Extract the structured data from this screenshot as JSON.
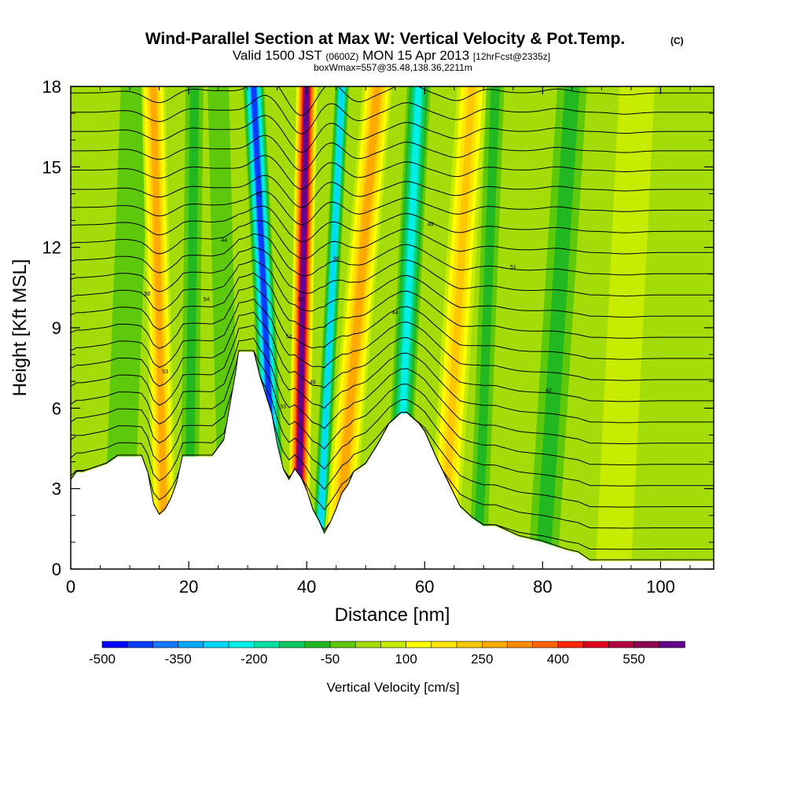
{
  "header": {
    "title": "Wind-Parallel Section at Max W: Vertical Velocity & Pot.Temp.",
    "copyright": "(C)",
    "valid_prefix": "Valid 1500 JST",
    "valid_zulu": "(0600Z)",
    "valid_date": "MON 15 Apr 2013",
    "forecast": "[12hrFcst@2335z]",
    "box_info": "boxWmax=557@35.48,138.36,2211m"
  },
  "chart_data": {
    "type": "heatmap",
    "title": "Wind-Parallel Section at Max W: Vertical Velocity & Pot.Temp.",
    "xlabel": "Distance [nm]",
    "ylabel": "Height [Kft MSL]",
    "xlim": [
      0,
      109
    ],
    "ylim": [
      0,
      18
    ],
    "xticks": [
      "0",
      "20",
      "40",
      "60",
      "80",
      "100"
    ],
    "xtick_values": [
      0,
      20,
      40,
      60,
      80,
      100
    ],
    "yticks": [
      "0",
      "3",
      "6",
      "9",
      "12",
      "15",
      "18"
    ],
    "ytick_values": [
      0,
      3,
      6,
      9,
      12,
      15,
      18
    ],
    "terrain": {
      "x": [
        0,
        1,
        2,
        6,
        8,
        12,
        13,
        14,
        15,
        16,
        17,
        18,
        19,
        20,
        24,
        26,
        28,
        28.5,
        31,
        32,
        34,
        35,
        36,
        37,
        38,
        39,
        40,
        41,
        42,
        43,
        44,
        45,
        46,
        47,
        48,
        50,
        52,
        54,
        56,
        57,
        59,
        60,
        62,
        64,
        66,
        68,
        70,
        72,
        76,
        80,
        84,
        86,
        88,
        90,
        95,
        100,
        105,
        109
      ],
      "y": [
        3.3,
        3.6,
        3.6,
        3.9,
        4.2,
        4.2,
        3.6,
        2.4,
        2.0,
        2.2,
        2.6,
        3.2,
        4.2,
        4.2,
        4.2,
        4.8,
        7.3,
        8.1,
        8.1,
        7.2,
        5.8,
        4.6,
        3.7,
        3.3,
        3.7,
        3.4,
        2.9,
        2.2,
        1.8,
        1.3,
        1.7,
        2.2,
        2.8,
        3.1,
        3.6,
        3.9,
        4.6,
        5.4,
        5.8,
        5.8,
        5.4,
        5.1,
        4.1,
        3.2,
        2.3,
        1.9,
        1.6,
        1.6,
        1.2,
        1.0,
        0.7,
        0.6,
        0.3,
        0.3,
        0.3,
        0.3,
        0.3,
        0.3
      ]
    },
    "vertical_velocity_bands": [
      {
        "x_bottom": 8,
        "x_top": 11,
        "half_width": 2.5,
        "value": -50
      },
      {
        "x_bottom": 16,
        "x_top": 14,
        "half_width": 2.0,
        "value": 250
      },
      {
        "x_bottom": 20,
        "x_top": 21,
        "half_width": 1.5,
        "value": -100
      },
      {
        "x_bottom": 27,
        "x_top": 25,
        "half_width": 1.8,
        "value": -50
      },
      {
        "x_bottom": 35,
        "x_top": 31,
        "half_width": 1.8,
        "value": -450
      },
      {
        "x_bottom": 38.5,
        "x_top": 40,
        "half_width": 1.8,
        "value": 600
      },
      {
        "x_bottom": 42,
        "x_top": 46,
        "half_width": 1.2,
        "value": -300
      },
      {
        "x_bottom": 45,
        "x_top": 52,
        "half_width": 2.5,
        "value": 250
      },
      {
        "x_bottom": 55,
        "x_top": 59,
        "half_width": 2.0,
        "value": -250
      },
      {
        "x_bottom": 63,
        "x_top": 68,
        "half_width": 2.5,
        "value": 200
      },
      {
        "x_bottom": 69,
        "x_top": 72,
        "half_width": 1.5,
        "value": -100
      },
      {
        "x_bottom": 80,
        "x_top": 85,
        "half_width": 2.5,
        "value": -100
      },
      {
        "x_bottom": 92,
        "x_top": 96,
        "half_width": 3.0,
        "value": 50
      }
    ],
    "isentropes": {
      "count": 24,
      "labels": [
        "50",
        "53",
        "54",
        "44",
        "52",
        "53",
        "54",
        "52",
        "49",
        "30",
        "44",
        "49",
        "51",
        "42"
      ]
    },
    "colorbar": {
      "label": "Vertical Velocity [cm/s]",
      "tick_labels": [
        "-500",
        "-350",
        "-200",
        "-50",
        "100",
        "250",
        "400",
        "550"
      ],
      "tick_values": [
        -500,
        -350,
        -200,
        -50,
        100,
        250,
        400,
        550
      ],
      "levels": [
        -500,
        -450,
        -400,
        -350,
        -300,
        -250,
        -200,
        -150,
        -100,
        -50,
        0,
        50,
        100,
        150,
        200,
        250,
        300,
        350,
        400,
        450,
        500,
        550,
        600
      ],
      "colors": [
        "#0000ff",
        "#0a3cff",
        "#1478ff",
        "#00aaff",
        "#00d8ff",
        "#00f0e8",
        "#00e0a0",
        "#10c860",
        "#22b822",
        "#5ec80a",
        "#a4dc0a",
        "#c8ec00",
        "#ffff00",
        "#ffe400",
        "#ffc800",
        "#ffaa00",
        "#ff8c00",
        "#ff6400",
        "#ff2800",
        "#e0001e",
        "#b4003c",
        "#8c0050",
        "#64008c"
      ]
    }
  }
}
